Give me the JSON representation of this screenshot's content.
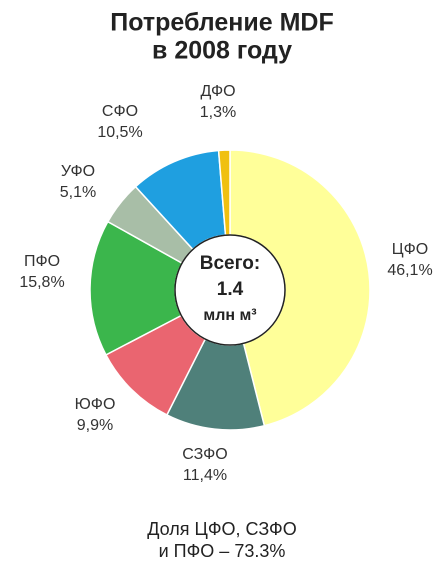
{
  "chart_data": {
    "type": "donut",
    "title": [
      "Потребление MDF",
      "в 2008 году"
    ],
    "categories": [
      "ЦФО",
      "СЗФО",
      "ЮФО",
      "ПФО",
      "УФО",
      "СФО",
      "ДФО"
    ],
    "values": [
      46.1,
      11.4,
      9.9,
      15.8,
      5.1,
      10.5,
      1.3
    ],
    "value_labels": [
      "46,1%",
      "11,4%",
      "9,9%",
      "15,8%",
      "5,1%",
      "10,5%",
      "1,3%"
    ],
    "colors": [
      "#ffff99",
      "#4f807a",
      "#ea6570",
      "#3bb64c",
      "#a8bea7",
      "#1f9fe0",
      "#f0c010"
    ],
    "center_text": [
      "Всего:",
      "1.4",
      "млн м³"
    ],
    "footnote": [
      "Доля ЦФО, СЗФО",
      "и ПФО – 73.3%"
    ]
  }
}
